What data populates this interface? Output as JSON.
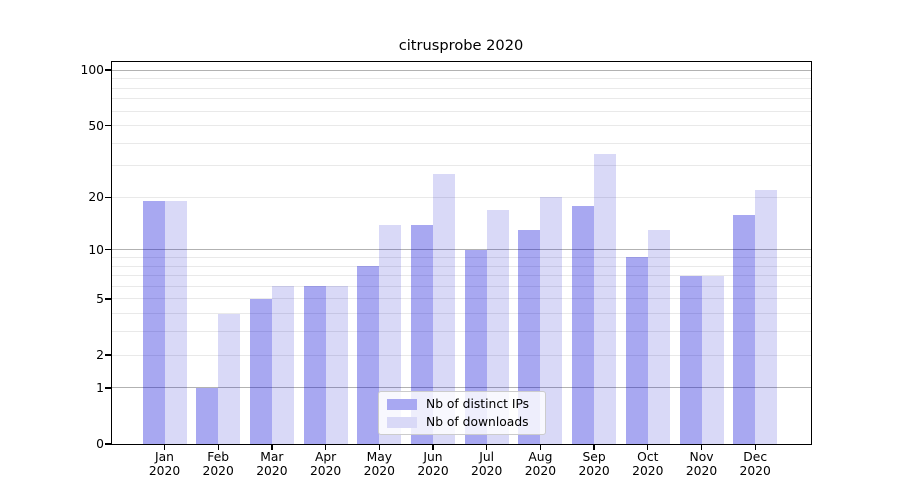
{
  "chart_data": {
    "type": "bar",
    "title": "citrusprobe 2020",
    "scale": "log1p (symlog-like: position proportional to ln(1+v))",
    "categories": [
      "Jan",
      "Feb",
      "Mar",
      "Apr",
      "May",
      "Jun",
      "Jul",
      "Aug",
      "Sep",
      "Oct",
      "Nov",
      "Dec"
    ],
    "tick_year": "2020",
    "series": [
      {
        "name": "Nb of distinct IPs",
        "color": "#a8a8f2",
        "fill": "rgba(0,0,215,0.34)",
        "values": [
          19,
          1,
          5,
          6,
          8,
          14,
          10,
          13,
          18,
          9,
          7,
          16
        ]
      },
      {
        "name": "Nb of downloads",
        "color": "#d9d9f7",
        "fill": "rgba(0,0,200,0.15)",
        "values": [
          19,
          4,
          6,
          6,
          14,
          27,
          17,
          20,
          35,
          13,
          7,
          22
        ]
      }
    ],
    "yticks_labeled": [
      0,
      1,
      2,
      5,
      10,
      20,
      50,
      100
    ],
    "gridlines_major": [
      1,
      10,
      100
    ],
    "gridlines_minor": [
      2,
      3,
      4,
      5,
      6,
      7,
      8,
      9,
      20,
      30,
      40,
      50,
      60,
      70,
      80,
      90
    ],
    "ylim": [
      0,
      110
    ],
    "xlabel": "",
    "ylabel": "",
    "grid": true,
    "legend_position": "lower-center"
  },
  "colors": {
    "background": "#ffffff",
    "spine": "#000000",
    "grid_major": "#b2b2b2",
    "grid_minor": "#e9e9e9",
    "legend_border": "#cccccc"
  }
}
